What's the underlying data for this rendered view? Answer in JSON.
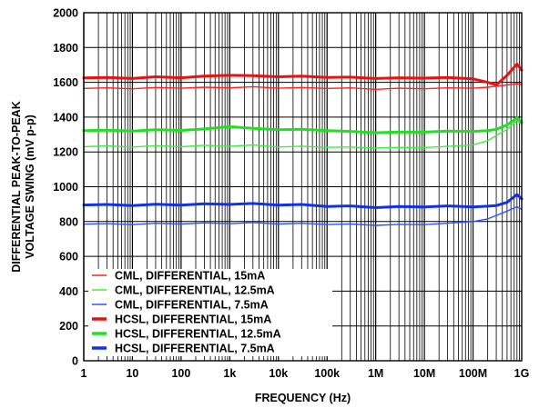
{
  "chart_data": {
    "type": "line",
    "xlabel": "FREQUENCY (Hz)",
    "ylabel_lines": [
      "DIFFERENTIAL PEAK-TO-PEAK",
      "VOLTAGE SWING (mV p-p)"
    ],
    "x_scale": "log",
    "xlim": [
      1,
      1000000000
    ],
    "ylim": [
      0,
      2000
    ],
    "x_ticks": [
      {
        "value": 1,
        "label": "1"
      },
      {
        "value": 10,
        "label": "10"
      },
      {
        "value": 100,
        "label": "100"
      },
      {
        "value": 1000,
        "label": "1k"
      },
      {
        "value": 10000,
        "label": "10k"
      },
      {
        "value": 100000,
        "label": "100k"
      },
      {
        "value": 1000000,
        "label": "1M"
      },
      {
        "value": 10000000,
        "label": "10M"
      },
      {
        "value": 100000000,
        "label": "100M"
      },
      {
        "value": 1000000000,
        "label": "1G"
      }
    ],
    "y_ticks": [
      0,
      200,
      400,
      600,
      800,
      1000,
      1200,
      1400,
      1600,
      1800,
      2000
    ],
    "grid": true,
    "legend_position": "bottom-left",
    "series": [
      {
        "name": "CML, DIFFERENTIAL, 15mA",
        "color": "#ff2020",
        "thick": false,
        "x": [
          1,
          3,
          10,
          30,
          100,
          300,
          1000,
          3000,
          10000,
          30000,
          100000,
          300000,
          1000000,
          3000000,
          10000000,
          30000000,
          100000000,
          200000000,
          300000000,
          500000000,
          800000000,
          1000000000
        ],
        "values": [
          1565,
          1568,
          1563,
          1570,
          1566,
          1572,
          1568,
          1575,
          1566,
          1570,
          1565,
          1568,
          1560,
          1566,
          1563,
          1568,
          1566,
          1572,
          1578,
          1585,
          1592,
          1588
        ]
      },
      {
        "name": "CML, DIFFERENTIAL, 12.5mA",
        "color": "#40ee40",
        "thick": false,
        "x": [
          1,
          3,
          10,
          30,
          100,
          300,
          1000,
          3000,
          10000,
          30000,
          100000,
          300000,
          1000000,
          3000000,
          10000000,
          30000000,
          100000000,
          200000000,
          300000000,
          500000000,
          800000000,
          1000000000
        ],
        "values": [
          1230,
          1235,
          1228,
          1236,
          1230,
          1238,
          1232,
          1240,
          1228,
          1233,
          1226,
          1228,
          1222,
          1226,
          1225,
          1232,
          1240,
          1265,
          1295,
          1330,
          1380,
          1360
        ]
      },
      {
        "name": "CML, DIFFERENTIAL, 7.5mA",
        "color": "#3050ff",
        "thick": false,
        "x": [
          1,
          3,
          10,
          30,
          100,
          300,
          1000,
          3000,
          10000,
          30000,
          100000,
          300000,
          1000000,
          3000000,
          10000000,
          30000000,
          100000000,
          200000000,
          300000000,
          500000000,
          800000000,
          1000000000
        ],
        "values": [
          785,
          788,
          782,
          790,
          786,
          792,
          788,
          794,
          786,
          790,
          783,
          786,
          778,
          784,
          782,
          790,
          800,
          815,
          835,
          860,
          885,
          870
        ]
      },
      {
        "name": "HCSL, DIFFERENTIAL, 15mA",
        "color": "#ee1010",
        "thick": true,
        "x": [
          1,
          3,
          10,
          30,
          100,
          300,
          1000,
          3000,
          10000,
          30000,
          100000,
          300000,
          1000000,
          3000000,
          10000000,
          30000000,
          100000000,
          200000000,
          300000000,
          500000000,
          800000000,
          1000000000
        ],
        "values": [
          1625,
          1628,
          1622,
          1632,
          1626,
          1636,
          1640,
          1638,
          1632,
          1636,
          1628,
          1630,
          1622,
          1626,
          1624,
          1628,
          1620,
          1600,
          1585,
          1640,
          1705,
          1670
        ]
      },
      {
        "name": "HCSL, DIFFERENTIAL, 12.5mA",
        "color": "#20e020",
        "thick": true,
        "x": [
          1,
          3,
          10,
          30,
          100,
          300,
          1000,
          3000,
          10000,
          30000,
          100000,
          300000,
          1000000,
          3000000,
          10000000,
          30000000,
          100000000,
          200000000,
          300000000,
          500000000,
          800000000,
          1000000000
        ],
        "values": [
          1322,
          1325,
          1320,
          1328,
          1324,
          1332,
          1345,
          1335,
          1328,
          1330,
          1322,
          1318,
          1310,
          1315,
          1314,
          1320,
          1318,
          1322,
          1330,
          1355,
          1395,
          1370
        ]
      },
      {
        "name": "HCSL, DIFFERENTIAL, 7.5mA",
        "color": "#1030f0",
        "thick": true,
        "x": [
          1,
          3,
          10,
          30,
          100,
          300,
          1000,
          3000,
          10000,
          30000,
          100000,
          300000,
          1000000,
          3000000,
          10000000,
          30000000,
          100000000,
          200000000,
          300000000,
          500000000,
          800000000,
          1000000000
        ],
        "values": [
          895,
          898,
          892,
          900,
          894,
          902,
          898,
          904,
          894,
          898,
          886,
          890,
          880,
          886,
          884,
          890,
          884,
          888,
          892,
          910,
          955,
          930
        ]
      }
    ]
  }
}
